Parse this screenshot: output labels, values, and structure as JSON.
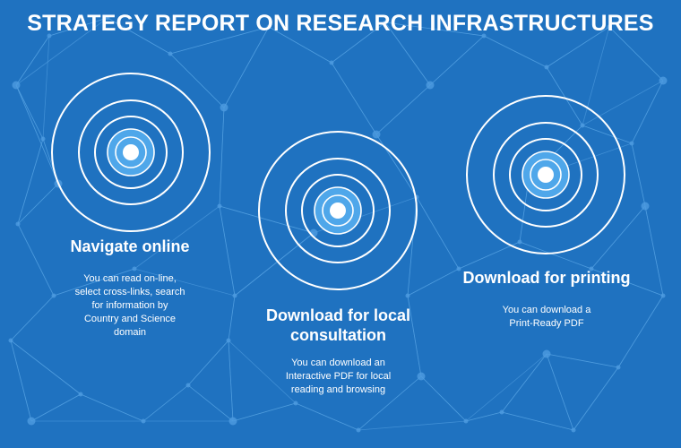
{
  "page": {
    "title": "STRATEGY REPORT ON RESEARCH INFRASTRUCTURES"
  },
  "colors": {
    "background": "#1f72c0",
    "network_line": "#5aa6e6",
    "ring": "#ffffff",
    "ring_inner_fill": "#4fa7ea"
  },
  "options": [
    {
      "title": "Navigate online",
      "description": [
        "You can read on-line,",
        "select cross-links, search",
        "for information by",
        "Country and Science",
        "domain"
      ],
      "icon": "target-rings-icon"
    },
    {
      "title": [
        "Download for local",
        "consultation"
      ],
      "description": [
        "You can download an",
        "Interactive PDF for local",
        "reading and browsing"
      ],
      "icon": "target-rings-icon"
    },
    {
      "title": "Download for printing",
      "description": [
        "You can download a",
        "Print-Ready PDF"
      ],
      "icon": "target-rings-icon"
    }
  ]
}
